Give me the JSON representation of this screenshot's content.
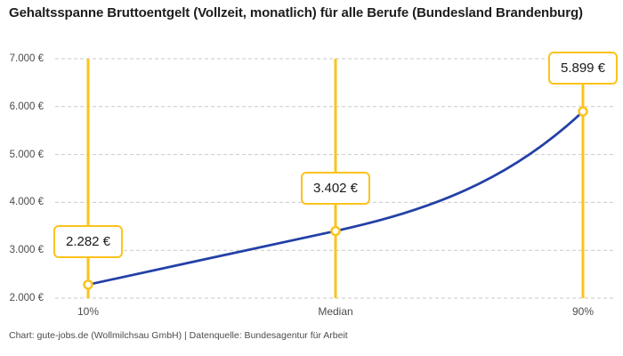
{
  "header": {
    "title": "Gehaltsspanne Bruttoentgelt (Vollzeit, monatlich) für alle Berufe (Bundesland Brandenburg)"
  },
  "chart_data": {
    "type": "line",
    "title": "Gehaltsspanne Bruttoentgelt (Vollzeit, monatlich) für alle Berufe (Bundesland Brandenburg)",
    "xlabel": "",
    "ylabel": "",
    "ylim": [
      2000,
      7000
    ],
    "grid": "horizontal-dashed",
    "legend": "none",
    "categories": [
      "10%",
      "Median",
      "90%"
    ],
    "values": [
      2282,
      3402,
      5899
    ],
    "points": [
      {
        "category": "10%",
        "value": 2282,
        "label": "2.282 €"
      },
      {
        "category": "Median",
        "value": 3402,
        "label": "3.402 €"
      },
      {
        "category": "90%",
        "value": 5899,
        "label": "5.899 €"
      }
    ],
    "y_ticks": [
      {
        "value": 7000,
        "label": "7.000 €"
      },
      {
        "value": 6000,
        "label": "6.000 €"
      },
      {
        "value": 5000,
        "label": "5.000 €"
      },
      {
        "value": 4000,
        "label": "4.000 €"
      },
      {
        "value": 3000,
        "label": "3.000 €"
      },
      {
        "value": 2000,
        "label": "2.000 €"
      }
    ],
    "colors": {
      "line": "#2340a7",
      "marker": "#fbc31b",
      "grid": "#c9c9c9",
      "text": "#1a1a1a",
      "axis_text": "#4c4c4c",
      "background": "#ffffff"
    }
  },
  "footer": {
    "attribution": "Chart: gute-jobs.de (Wollmilchsau GmbH) | Datenquelle: Bundesagentur für Arbeit"
  }
}
